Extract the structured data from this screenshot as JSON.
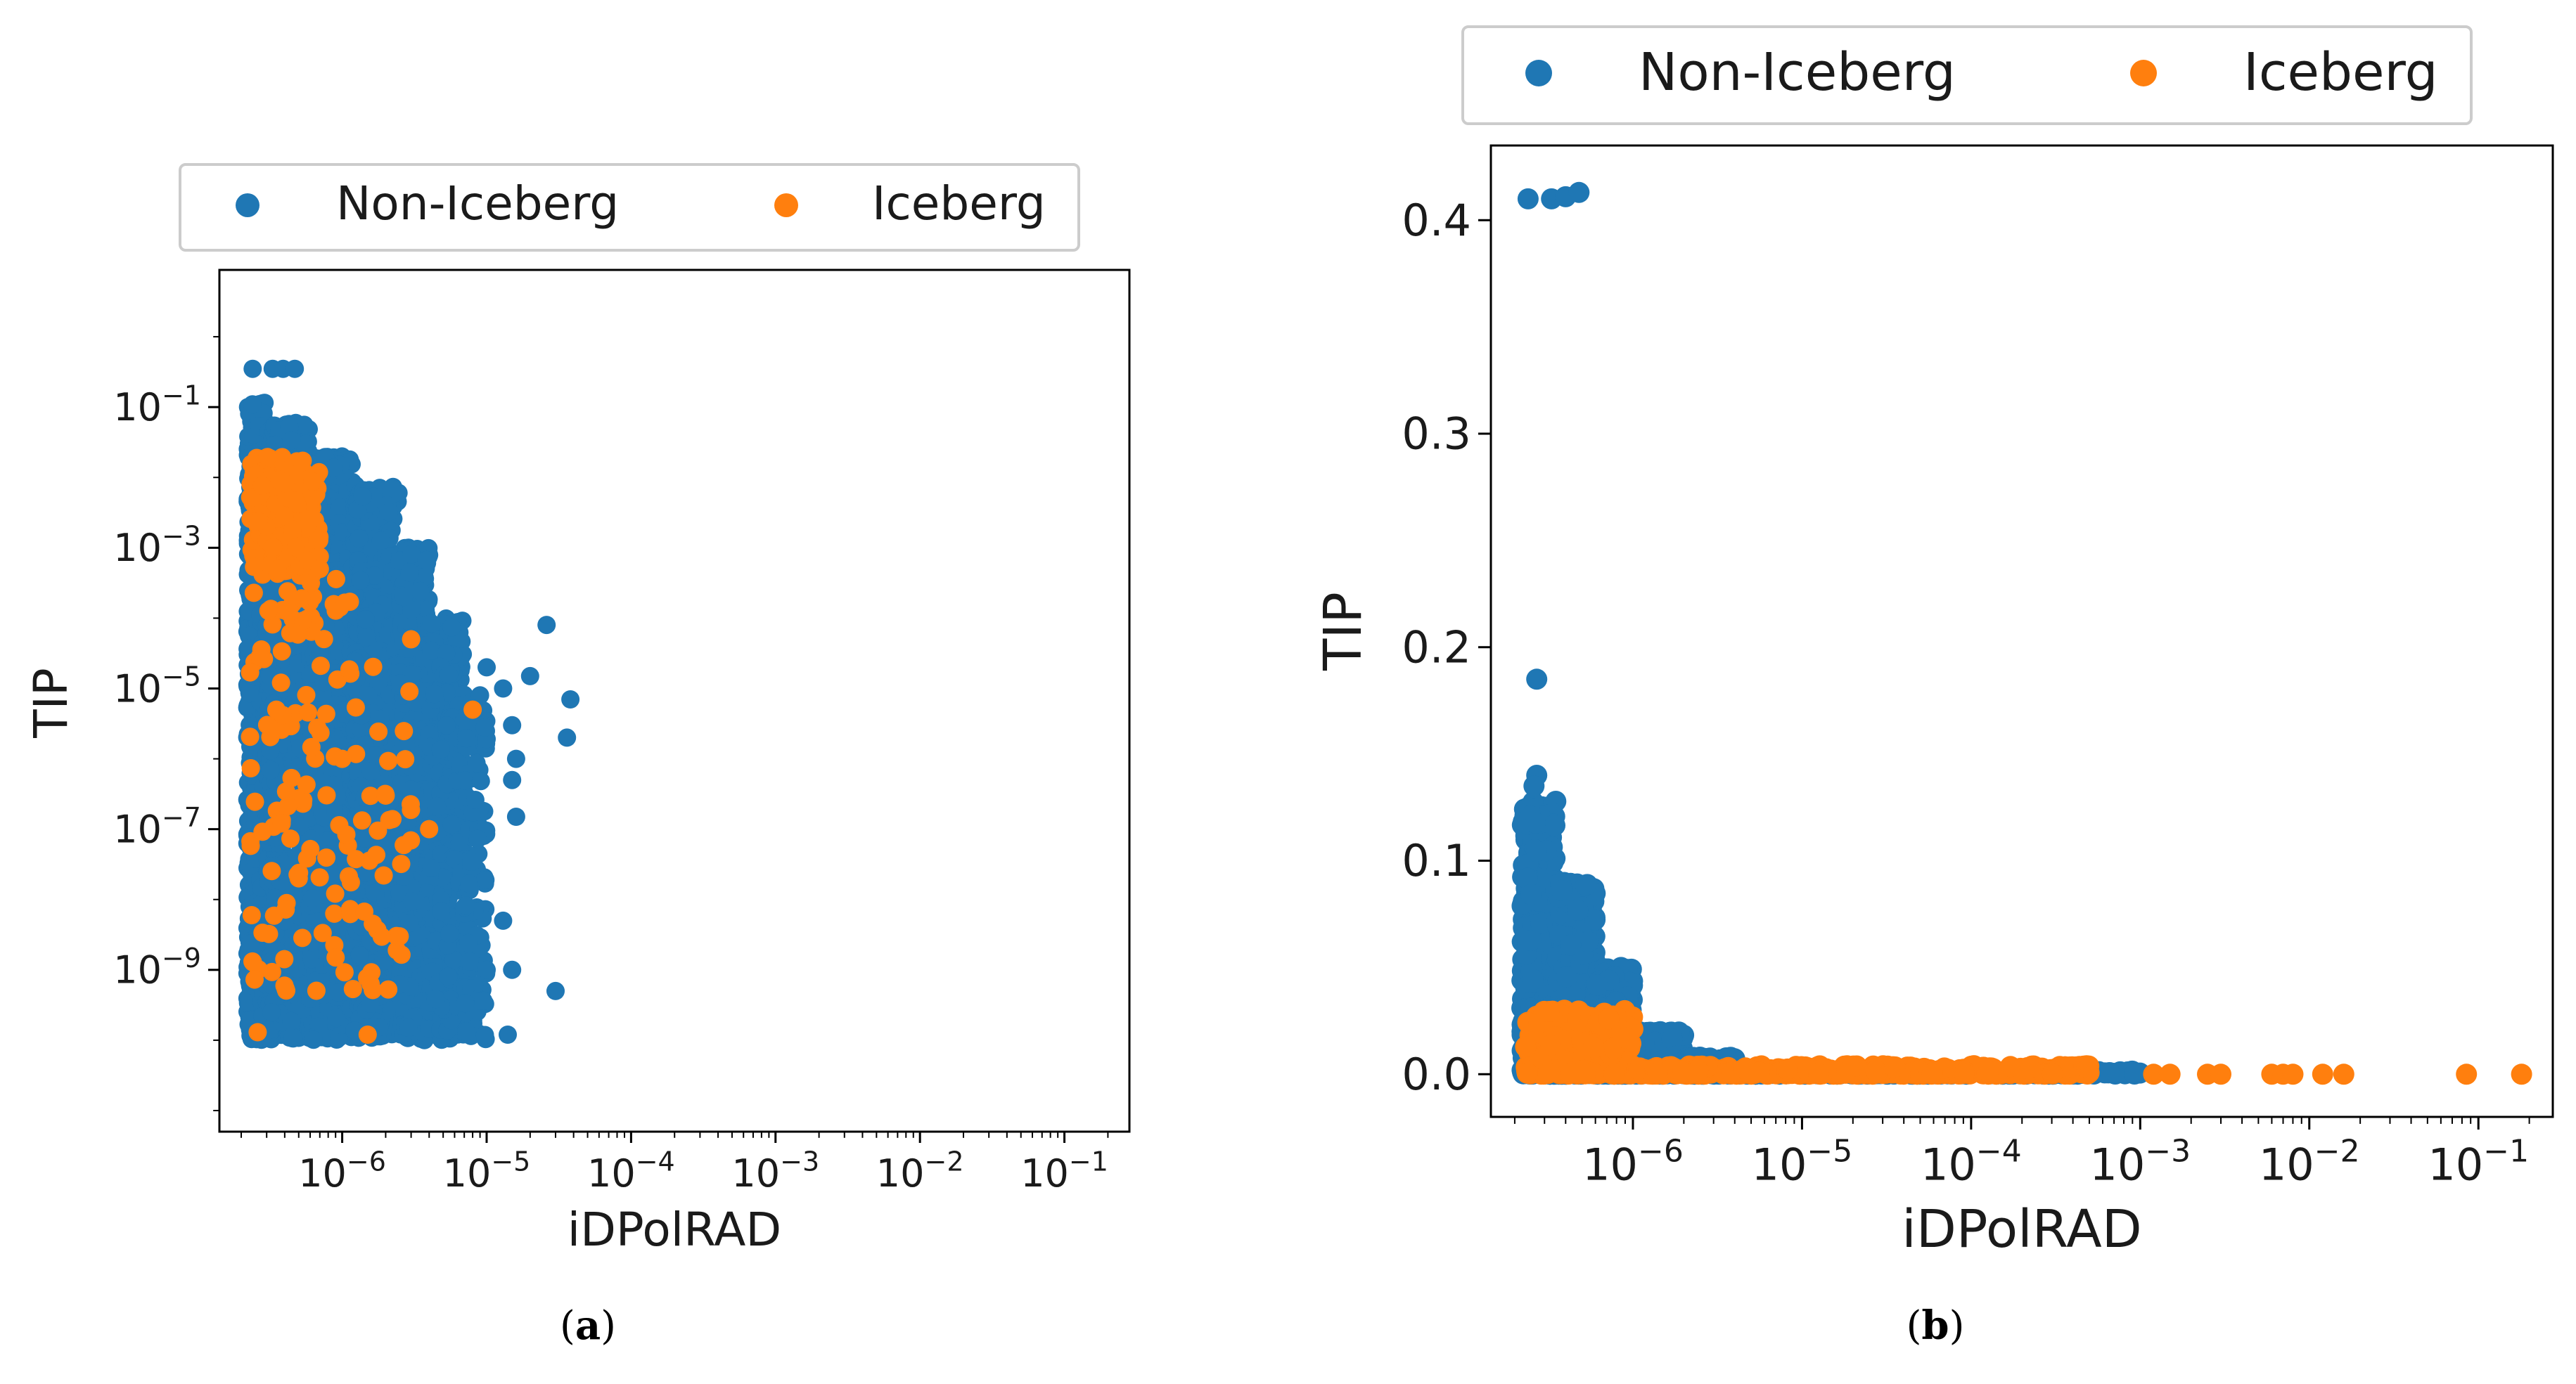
{
  "colors": {
    "non_iceberg": "#1f77b4",
    "iceberg": "#ff7f0e"
  },
  "chart_data": [
    {
      "id": "a",
      "type": "scatter",
      "caption_letter": "a",
      "xlabel": "iDPolRAD",
      "ylabel": "TIP",
      "xscale": "log",
      "yscale": "log",
      "xlim_exp": [
        -6.85,
        -0.55
      ],
      "ylim_exp": [
        -11.3,
        0.95
      ],
      "xticks": [
        {
          "exp": -6,
          "base": "10",
          "sup": "−6"
        },
        {
          "exp": -5,
          "base": "10",
          "sup": "−5"
        },
        {
          "exp": -4,
          "base": "10",
          "sup": "−4"
        },
        {
          "exp": -3,
          "base": "10",
          "sup": "−3"
        },
        {
          "exp": -2,
          "base": "10",
          "sup": "−2"
        },
        {
          "exp": -1,
          "base": "10",
          "sup": "−1"
        }
      ],
      "yticks": [
        {
          "exp": -1,
          "base": "10",
          "sup": "−1"
        },
        {
          "exp": -3,
          "base": "10",
          "sup": "−3"
        },
        {
          "exp": -5,
          "base": "10",
          "sup": "−5"
        },
        {
          "exp": -7,
          "base": "10",
          "sup": "−7"
        },
        {
          "exp": -9,
          "base": "10",
          "sup": "−9"
        }
      ],
      "legend": {
        "placement": "top",
        "entries": [
          "Non-Iceberg",
          "Iceberg"
        ]
      },
      "series": [
        {
          "name": "Non-Iceberg",
          "color_key": "non_iceberg",
          "points": [
            [
              2.4e-07,
              0.35
            ],
            [
              3.3e-07,
              0.35
            ],
            [
              3.9e-07,
              0.35
            ],
            [
              4.7e-07,
              0.35
            ],
            [
              2.6e-05,
              8e-05
            ],
            [
              3.8e-05,
              7e-06
            ],
            [
              3.6e-05,
              2e-06
            ],
            [
              2e-05,
              1.5e-05
            ],
            [
              1.3e-05,
              1e-05
            ],
            [
              1.5e-05,
              3e-06
            ],
            [
              1.6e-05,
              1e-06
            ],
            [
              1.5e-05,
              5e-07
            ],
            [
              1.6e-05,
              1.5e-07
            ],
            [
              1.3e-05,
              5e-09
            ],
            [
              1.5e-05,
              1e-09
            ],
            [
              3e-05,
              5e-10
            ],
            [
              1.4e-05,
              1.2e-10
            ],
            [
              9e-06,
              8e-06
            ],
            [
              1e-05,
              2e-05
            ],
            [
              1e-05,
              1e-09
            ]
          ],
          "clouds": [
            {
              "x": [
                2.2e-07,
                3e-07
              ],
              "y": [
                1e-10,
                0.12
              ],
              "n": 700
            },
            {
              "x": [
                3e-07,
                6e-07
              ],
              "y": [
                1e-10,
                0.06
              ],
              "n": 1000
            },
            {
              "x": [
                6e-07,
                1.2e-06
              ],
              "y": [
                1e-10,
                0.02
              ],
              "n": 1000
            },
            {
              "x": [
                1.2e-06,
                2.5e-06
              ],
              "y": [
                1e-10,
                0.008
              ],
              "n": 900
            },
            {
              "x": [
                2.5e-06,
                4e-06
              ],
              "y": [
                1e-10,
                0.001
              ],
              "n": 700
            },
            {
              "x": [
                4e-06,
                7e-06
              ],
              "y": [
                1e-10,
                0.0001
              ],
              "n": 400
            },
            {
              "x": [
                7e-06,
                1e-05
              ],
              "y": [
                1e-10,
                1e-05
              ],
              "n": 120
            }
          ]
        },
        {
          "name": "Iceberg",
          "color_key": "iceberg",
          "points": [
            [
              2.6e-07,
              1.3e-10
            ],
            [
              1.5e-06,
              1.2e-10
            ],
            [
              7e-07,
              0.0005
            ],
            [
              3e-06,
              5e-05
            ],
            [
              8e-06,
              5e-06
            ],
            [
              9e-07,
              1.5e-09
            ],
            [
              2e-06,
              3e-07
            ],
            [
              4e-06,
              1e-07
            ],
            [
              3.5e-07,
              5e-06
            ],
            [
              5e-07,
              2e-08
            ],
            [
              1e-06,
              1e-06
            ],
            [
              2.5e-06,
              3e-09
            ]
          ],
          "clouds": [
            {
              "x": [
                2.3e-07,
                7e-07
              ],
              "y": [
                0.0004,
                0.02
              ],
              "n": 260
            },
            {
              "x": [
                2.3e-07,
                1.2e-06
              ],
              "y": [
                5e-10,
                0.0004
              ],
              "n": 110
            },
            {
              "x": [
                1.2e-06,
                3e-06
              ],
              "y": [
                5e-10,
                4e-05
              ],
              "n": 35
            }
          ]
        }
      ]
    },
    {
      "id": "b",
      "type": "scatter",
      "caption_letter": "b",
      "xlabel": "iDPolRAD",
      "ylabel": "TIP",
      "xscale": "log",
      "yscale": "linear",
      "xlim_exp": [
        -6.84,
        -0.56
      ],
      "ylim": [
        -0.02,
        0.435
      ],
      "xticks": [
        {
          "exp": -6,
          "base": "10",
          "sup": "−6"
        },
        {
          "exp": -5,
          "base": "10",
          "sup": "−5"
        },
        {
          "exp": -4,
          "base": "10",
          "sup": "−4"
        },
        {
          "exp": -3,
          "base": "10",
          "sup": "−3"
        },
        {
          "exp": -2,
          "base": "10",
          "sup": "−2"
        },
        {
          "exp": -1,
          "base": "10",
          "sup": "−1"
        }
      ],
      "yticks": [
        {
          "value": 0.4,
          "label": "0.4"
        },
        {
          "value": 0.3,
          "label": "0.3"
        },
        {
          "value": 0.2,
          "label": "0.2"
        },
        {
          "value": 0.1,
          "label": "0.1"
        },
        {
          "value": 0.0,
          "label": "0.0"
        }
      ],
      "legend": {
        "placement": "top",
        "entries": [
          "Non-Iceberg",
          "Iceberg"
        ]
      },
      "series": [
        {
          "name": "Non-Iceberg",
          "color_key": "non_iceberg",
          "points": [
            [
              2.4e-07,
              0.41
            ],
            [
              3.3e-07,
              0.41
            ],
            [
              4e-07,
              0.411
            ],
            [
              4.8e-07,
              0.413
            ],
            [
              2.7e-07,
              0.185
            ],
            [
              2.7e-07,
              0.14
            ],
            [
              2.6e-07,
              0.135
            ]
          ],
          "clouds": [
            {
              "x": [
                2.2e-07,
                3.5e-07
              ],
              "y": [
                0,
                0.13
              ],
              "n": 500
            },
            {
              "x": [
                3.5e-07,
                6e-07
              ],
              "y": [
                0,
                0.09
              ],
              "n": 500
            },
            {
              "x": [
                6e-07,
                1e-06
              ],
              "y": [
                0,
                0.05
              ],
              "n": 400
            },
            {
              "x": [
                1e-06,
                2e-06
              ],
              "y": [
                0,
                0.02
              ],
              "n": 250
            },
            {
              "x": [
                2e-06,
                4e-06
              ],
              "y": [
                0,
                0.008
              ],
              "n": 120
            },
            {
              "x": [
                4e-06,
                0.001
              ],
              "y": [
                0,
                0.0015
              ],
              "n": 220
            }
          ]
        },
        {
          "name": "Iceberg",
          "color_key": "iceberg",
          "points": [
            [
              0.0012,
              0.0
            ],
            [
              0.0015,
              0.0
            ],
            [
              0.0025,
              0.0
            ],
            [
              0.003,
              0.0
            ],
            [
              0.006,
              0.0
            ],
            [
              0.007,
              0.0
            ],
            [
              0.008,
              0.0
            ],
            [
              0.012,
              0.0
            ],
            [
              0.016,
              0.0
            ],
            [
              0.085,
              0.0
            ],
            [
              0.18,
              0.0
            ]
          ],
          "clouds": [
            {
              "x": [
                2.3e-07,
                1e-06
              ],
              "y": [
                0,
                0.03
              ],
              "n": 320
            },
            {
              "x": [
                1e-06,
                0.0005
              ],
              "y": [
                0,
                0.004
              ],
              "n": 420
            }
          ]
        }
      ]
    }
  ],
  "captions": {
    "a": {
      "open": "(",
      "letter": "a",
      "close": ")"
    },
    "b": {
      "open": "(",
      "letter": "b",
      "close": ")"
    }
  }
}
